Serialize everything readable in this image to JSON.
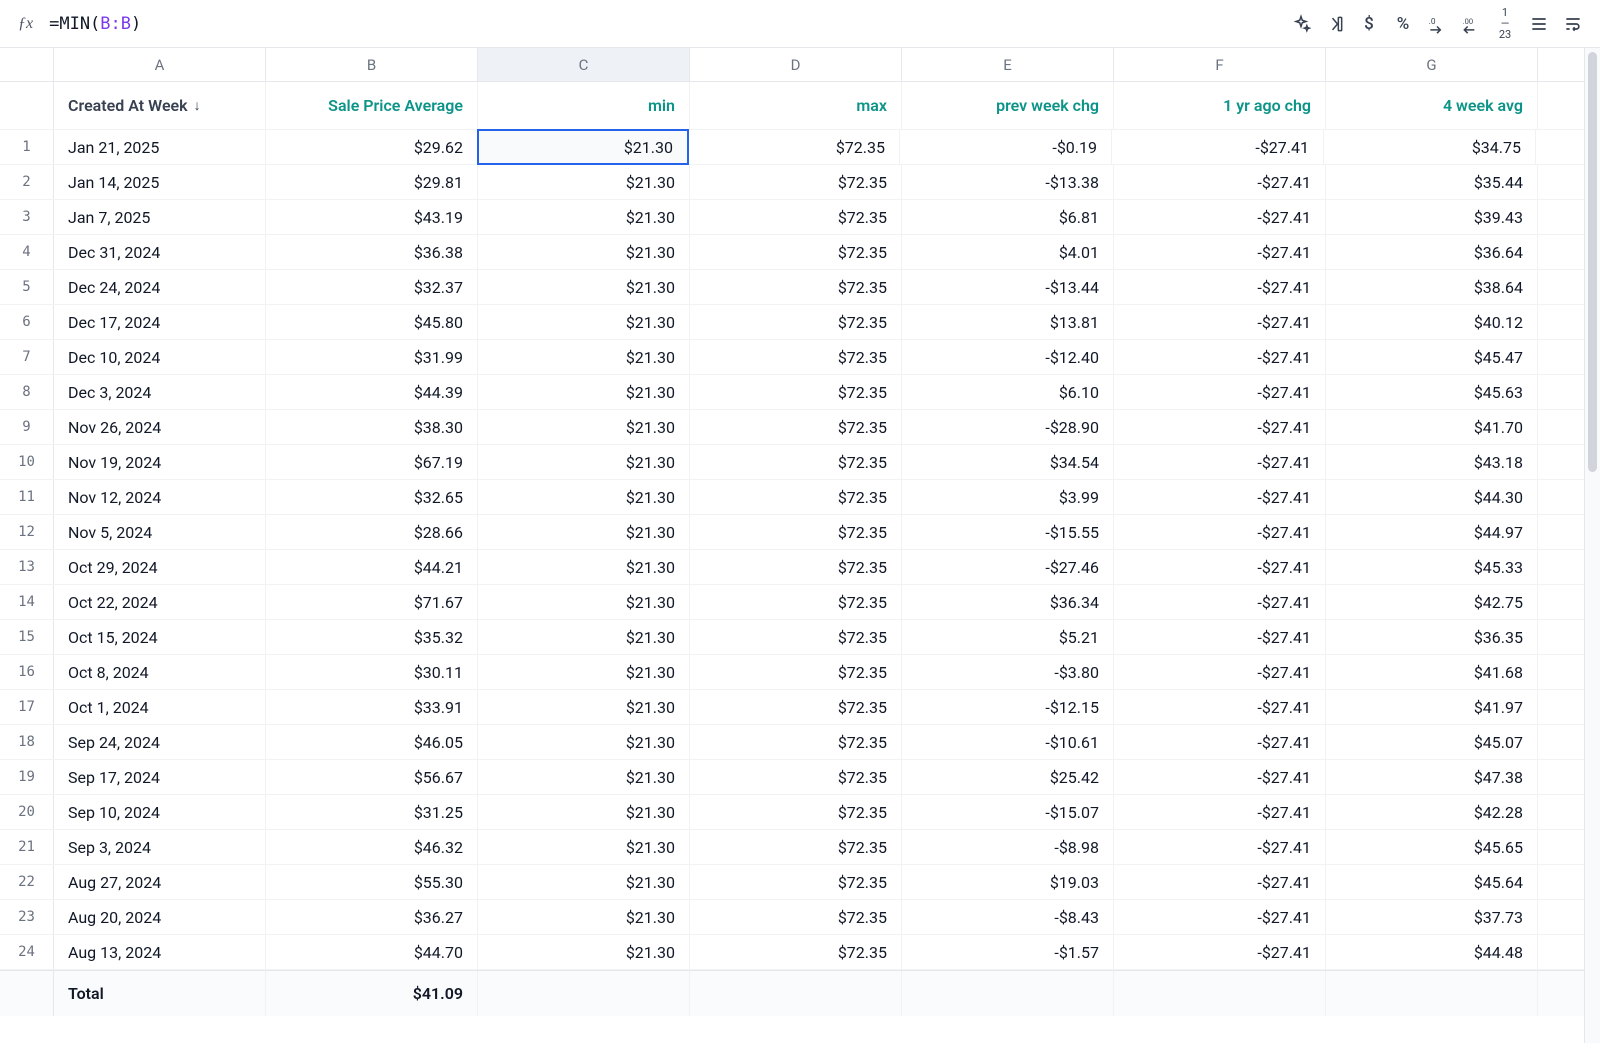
{
  "formula": {
    "fn": "=MIN(",
    "ref": "B:B",
    "close": ")"
  },
  "columns": {
    "letters": [
      "A",
      "B",
      "C",
      "D",
      "E",
      "F",
      "G"
    ],
    "active_index": 2,
    "headers": [
      {
        "label": "Created At Week",
        "sort_desc": true,
        "teal": false,
        "align": "left"
      },
      {
        "label": "Sale Price Average",
        "teal": true
      },
      {
        "label": "min",
        "teal": true
      },
      {
        "label": "max",
        "teal": true
      },
      {
        "label": "prev week chg",
        "teal": true
      },
      {
        "label": "1 yr ago chg",
        "teal": true
      },
      {
        "label": "4 week avg",
        "teal": true
      }
    ]
  },
  "selected": {
    "row": 0,
    "col": 2
  },
  "rows": [
    [
      "Jan 21, 2025",
      "$29.62",
      "$21.30",
      "$72.35",
      "-$0.19",
      "-$27.41",
      "$34.75"
    ],
    [
      "Jan 14, 2025",
      "$29.81",
      "$21.30",
      "$72.35",
      "-$13.38",
      "-$27.41",
      "$35.44"
    ],
    [
      "Jan 7, 2025",
      "$43.19",
      "$21.30",
      "$72.35",
      "$6.81",
      "-$27.41",
      "$39.43"
    ],
    [
      "Dec 31, 2024",
      "$36.38",
      "$21.30",
      "$72.35",
      "$4.01",
      "-$27.41",
      "$36.64"
    ],
    [
      "Dec 24, 2024",
      "$32.37",
      "$21.30",
      "$72.35",
      "-$13.44",
      "-$27.41",
      "$38.64"
    ],
    [
      "Dec 17, 2024",
      "$45.80",
      "$21.30",
      "$72.35",
      "$13.81",
      "-$27.41",
      "$40.12"
    ],
    [
      "Dec 10, 2024",
      "$31.99",
      "$21.30",
      "$72.35",
      "-$12.40",
      "-$27.41",
      "$45.47"
    ],
    [
      "Dec 3, 2024",
      "$44.39",
      "$21.30",
      "$72.35",
      "$6.10",
      "-$27.41",
      "$45.63"
    ],
    [
      "Nov 26, 2024",
      "$38.30",
      "$21.30",
      "$72.35",
      "-$28.90",
      "-$27.41",
      "$41.70"
    ],
    [
      "Nov 19, 2024",
      "$67.19",
      "$21.30",
      "$72.35",
      "$34.54",
      "-$27.41",
      "$43.18"
    ],
    [
      "Nov 12, 2024",
      "$32.65",
      "$21.30",
      "$72.35",
      "$3.99",
      "-$27.41",
      "$44.30"
    ],
    [
      "Nov 5, 2024",
      "$28.66",
      "$21.30",
      "$72.35",
      "-$15.55",
      "-$27.41",
      "$44.97"
    ],
    [
      "Oct 29, 2024",
      "$44.21",
      "$21.30",
      "$72.35",
      "-$27.46",
      "-$27.41",
      "$45.33"
    ],
    [
      "Oct 22, 2024",
      "$71.67",
      "$21.30",
      "$72.35",
      "$36.34",
      "-$27.41",
      "$42.75"
    ],
    [
      "Oct 15, 2024",
      "$35.32",
      "$21.30",
      "$72.35",
      "$5.21",
      "-$27.41",
      "$36.35"
    ],
    [
      "Oct 8, 2024",
      "$30.11",
      "$21.30",
      "$72.35",
      "-$3.80",
      "-$27.41",
      "$41.68"
    ],
    [
      "Oct 1, 2024",
      "$33.91",
      "$21.30",
      "$72.35",
      "-$12.15",
      "-$27.41",
      "$41.97"
    ],
    [
      "Sep 24, 2024",
      "$46.05",
      "$21.30",
      "$72.35",
      "-$10.61",
      "-$27.41",
      "$45.07"
    ],
    [
      "Sep 17, 2024",
      "$56.67",
      "$21.30",
      "$72.35",
      "$25.42",
      "-$27.41",
      "$47.38"
    ],
    [
      "Sep 10, 2024",
      "$31.25",
      "$21.30",
      "$72.35",
      "-$15.07",
      "-$27.41",
      "$42.28"
    ],
    [
      "Sep 3, 2024",
      "$46.32",
      "$21.30",
      "$72.35",
      "-$8.98",
      "-$27.41",
      "$45.65"
    ],
    [
      "Aug 27, 2024",
      "$55.30",
      "$21.30",
      "$72.35",
      "$19.03",
      "-$27.41",
      "$45.64"
    ],
    [
      "Aug 20, 2024",
      "$36.27",
      "$21.30",
      "$72.35",
      "-$8.43",
      "-$27.41",
      "$37.73"
    ],
    [
      "Aug 13, 2024",
      "$44.70",
      "$21.30",
      "$72.35",
      "-$1.57",
      "-$27.41",
      "$44.48"
    ]
  ],
  "total": {
    "label": "Total",
    "values": [
      "$41.09",
      "",
      "",
      "",
      "",
      ""
    ]
  },
  "toolbar": {
    "icons": [
      "sparkle-icon",
      "insert-right-icon",
      "currency-icon",
      "percent-icon",
      "decimal-decrease-icon",
      "decimal-increase-icon",
      "fraction-icon",
      "align-icon",
      "wrap-icon"
    ]
  }
}
